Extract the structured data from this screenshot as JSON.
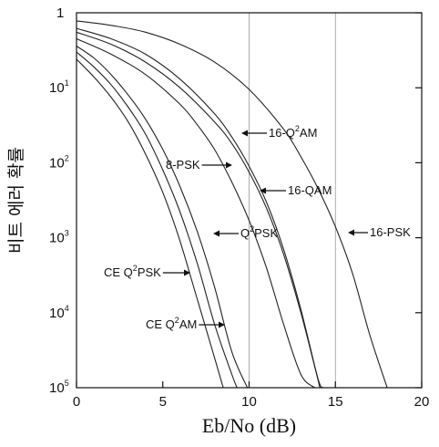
{
  "chart_data": {
    "type": "line",
    "title": "",
    "xlabel": "Eb/No (dB)",
    "ylabel": "비트 에러 확률",
    "xlim": [
      0,
      20
    ],
    "ylim": [
      1e-05,
      1
    ],
    "yscale": "log",
    "grid": "vertical lines at 10 and 15",
    "x_ticks": [
      "0",
      "5",
      "10",
      "15",
      "20"
    ],
    "y_ticks": [
      {
        "base": "1",
        "exp": ""
      },
      {
        "base": "10",
        "exp": "1"
      },
      {
        "base": "10",
        "exp": "2"
      },
      {
        "base": "10",
        "exp": "3"
      },
      {
        "base": "10",
        "exp": "4"
      },
      {
        "base": "10",
        "exp": "5"
      }
    ],
    "series": [
      {
        "key": "ceq2am",
        "label_base": "CE Q",
        "label_sup": "2",
        "label_tail": "AM",
        "x": [
          0,
          1,
          2,
          3,
          4,
          5,
          6,
          7,
          8,
          8.5
        ],
        "y": [
          0.24,
          0.14,
          0.075,
          0.035,
          0.013,
          0.004,
          0.0009,
          0.00015,
          2.5e-05,
          1e-05
        ]
      },
      {
        "key": "ceq2psk",
        "label_base": "CE Q",
        "label_sup": "2",
        "label_tail": "PSK",
        "x": [
          0,
          1,
          2,
          3,
          4,
          5,
          6,
          7,
          8,
          9,
          9.3
        ],
        "y": [
          0.3,
          0.19,
          0.11,
          0.055,
          0.024,
          0.008,
          0.0022,
          0.00045,
          7e-05,
          1.5e-05,
          1e-05
        ]
      },
      {
        "key": "q2psk",
        "label_base": "Q",
        "label_sup": "2",
        "label_tail": "PSK",
        "x": [
          0,
          1,
          2,
          3,
          4,
          5,
          6,
          7,
          8,
          9,
          9.9
        ],
        "y": [
          0.36,
          0.25,
          0.15,
          0.08,
          0.038,
          0.015,
          0.0048,
          0.0012,
          0.00022,
          3e-05,
          1e-05
        ]
      },
      {
        "key": "8psk",
        "label_base": "8-PSK",
        "label_sup": "",
        "label_tail": "",
        "x": [
          0,
          2,
          4,
          6,
          7,
          8,
          9,
          10,
          11,
          12,
          13,
          13.8
        ],
        "y": [
          0.45,
          0.28,
          0.15,
          0.06,
          0.032,
          0.015,
          0.0055,
          0.0017,
          0.0004,
          7e-05,
          1.5e-05,
          1e-05
        ]
      },
      {
        "key": "16qam",
        "label_base": "16-QAM",
        "label_sup": "",
        "label_tail": "",
        "x": [
          0,
          2,
          4,
          6,
          8,
          9,
          10,
          11,
          12,
          13,
          14,
          14.3
        ],
        "y": [
          0.55,
          0.38,
          0.22,
          0.1,
          0.035,
          0.018,
          0.0075,
          0.0025,
          0.0006,
          0.0001,
          1.3e-05,
          1e-05
        ]
      },
      {
        "key": "16q2am",
        "label_base": "16-Q",
        "label_sup": "2",
        "label_tail": "AM",
        "x": [
          0,
          2,
          4,
          6,
          8,
          9,
          10,
          11,
          12,
          13,
          14.1
        ],
        "y": [
          0.62,
          0.45,
          0.28,
          0.13,
          0.045,
          0.022,
          0.009,
          0.003,
          0.0007,
          0.00011,
          1e-05
        ]
      },
      {
        "key": "16psk",
        "label_base": "16-PSK",
        "label_sup": "",
        "label_tail": "",
        "x": [
          0,
          2,
          4,
          6,
          8,
          10,
          12,
          13,
          14,
          15,
          16,
          17,
          18
        ],
        "y": [
          0.78,
          0.68,
          0.55,
          0.38,
          0.22,
          0.095,
          0.028,
          0.012,
          0.0045,
          0.0014,
          0.00033,
          5e-05,
          1e-05
        ]
      }
    ]
  }
}
